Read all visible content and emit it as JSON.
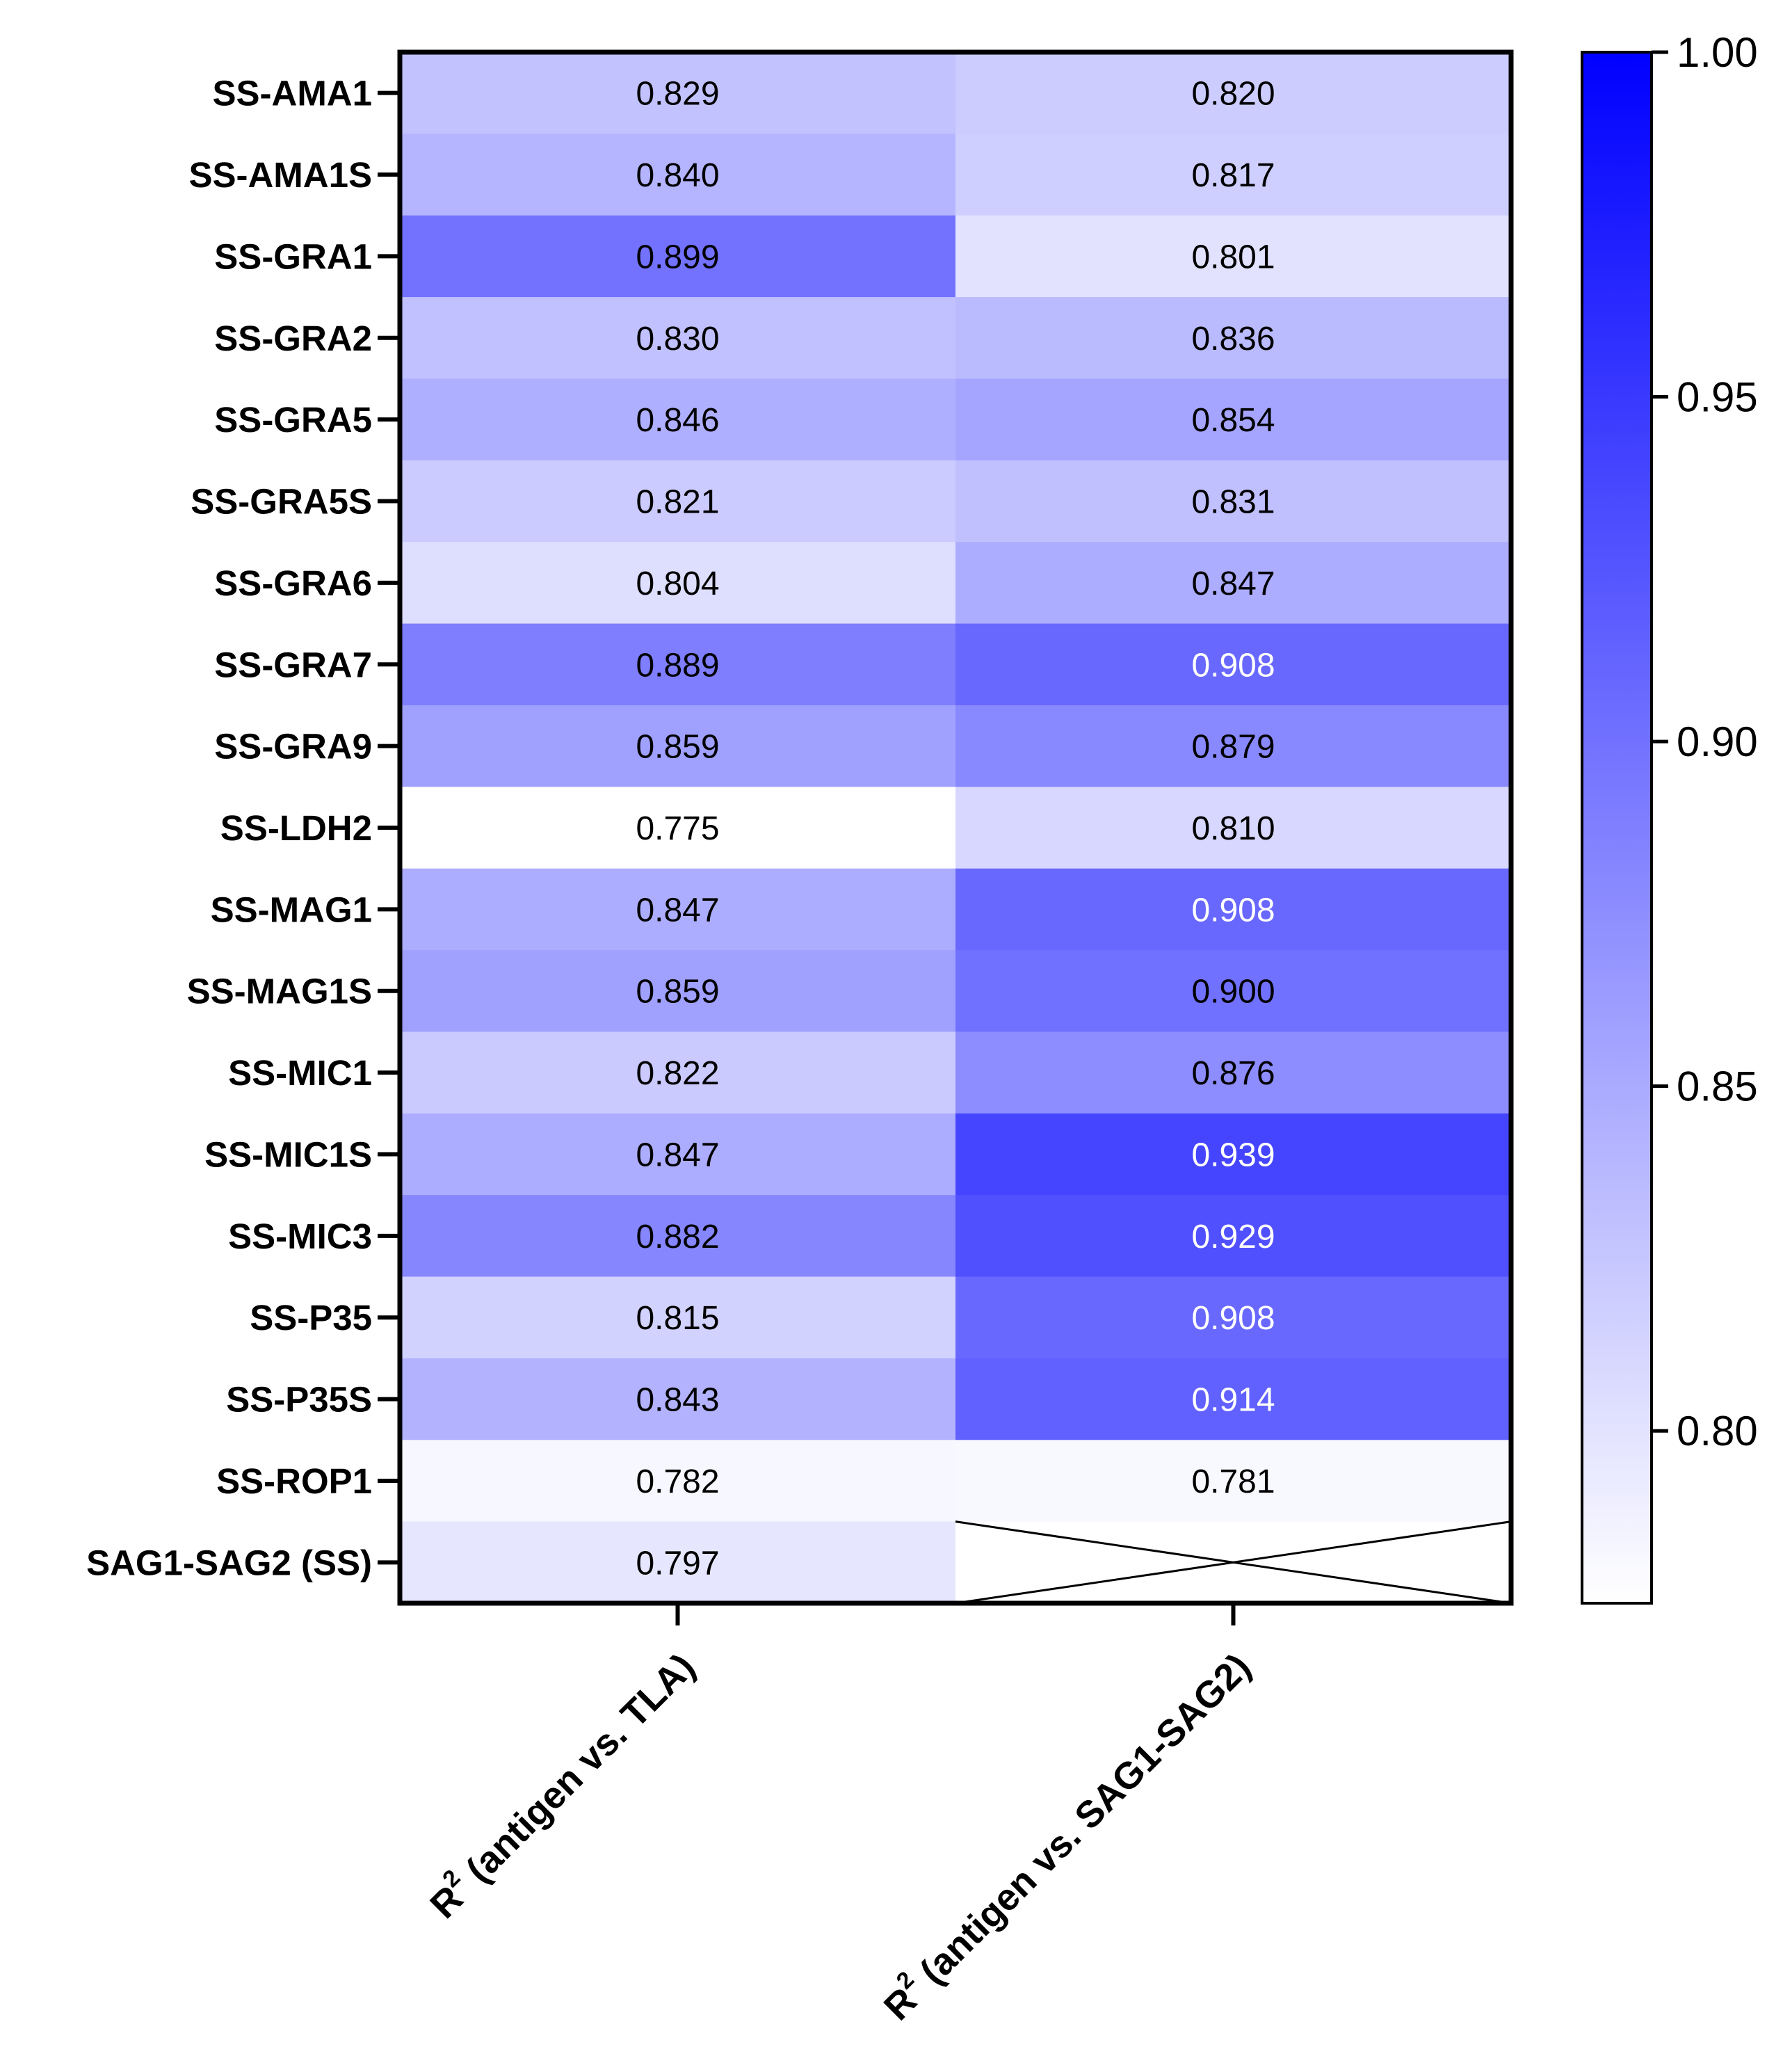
{
  "chart_data": {
    "type": "heatmap",
    "rows": [
      "SS-AMA1",
      "SS-AMA1S",
      "SS-GRA1",
      "SS-GRA2",
      "SS-GRA5",
      "SS-GRA5S",
      "SS-GRA6",
      "SS-GRA7",
      "SS-GRA9",
      "SS-LDH2",
      "SS-MAG1",
      "SS-MAG1S",
      "SS-MIC1",
      "SS-MIC1S",
      "SS-MIC3",
      "SS-P35",
      "SS-P35S",
      "SS-ROP1",
      "SAG1-SAG2 (SS)"
    ],
    "columns": [
      {
        "prefix": "R",
        "superscript": "2",
        "text": " (antigen vs. TLA)"
      },
      {
        "prefix": "R",
        "superscript": "2",
        "text": " (antigen vs. SAG1-SAG2)"
      }
    ],
    "values": [
      [
        0.829,
        0.82
      ],
      [
        0.84,
        0.817
      ],
      [
        0.899,
        0.801
      ],
      [
        0.83,
        0.836
      ],
      [
        0.846,
        0.854
      ],
      [
        0.821,
        0.831
      ],
      [
        0.804,
        0.847
      ],
      [
        0.889,
        0.908
      ],
      [
        0.859,
        0.879
      ],
      [
        0.775,
        0.81
      ],
      [
        0.847,
        0.908
      ],
      [
        0.859,
        0.9
      ],
      [
        0.822,
        0.876
      ],
      [
        0.847,
        0.939
      ],
      [
        0.882,
        0.929
      ],
      [
        0.815,
        0.908
      ],
      [
        0.843,
        0.914
      ],
      [
        0.782,
        0.781
      ],
      [
        0.797,
        null
      ]
    ],
    "labels": [
      [
        "0.829",
        "0.820"
      ],
      [
        "0.840",
        "0.817"
      ],
      [
        "0.899",
        "0.801"
      ],
      [
        "0.830",
        "0.836"
      ],
      [
        "0.846",
        "0.854"
      ],
      [
        "0.821",
        "0.831"
      ],
      [
        "0.804",
        "0.847"
      ],
      [
        "0.889",
        "0.908"
      ],
      [
        "0.859",
        "0.879"
      ],
      [
        "0.775",
        "0.810"
      ],
      [
        "0.847",
        "0.908"
      ],
      [
        "0.859",
        "0.900"
      ],
      [
        "0.822",
        "0.876"
      ],
      [
        "0.847",
        "0.939"
      ],
      [
        "0.882",
        "0.929"
      ],
      [
        "0.815",
        "0.908"
      ],
      [
        "0.843",
        "0.914"
      ],
      [
        "0.782",
        "0.781"
      ],
      [
        "0.797",
        ""
      ]
    ],
    "missing_cell_marker": "crossed-box",
    "colorbar": {
      "min": 0.775,
      "max": 1.0,
      "ticks": [
        0.8,
        0.85,
        0.9,
        0.95,
        1.0
      ],
      "tick_labels": [
        "0.80",
        "0.85",
        "0.90",
        "0.95",
        "1.00"
      ],
      "low_color": "#ffffff",
      "high_color": "#0000ff"
    },
    "title": "",
    "xlabel": "",
    "ylabel": ""
  }
}
